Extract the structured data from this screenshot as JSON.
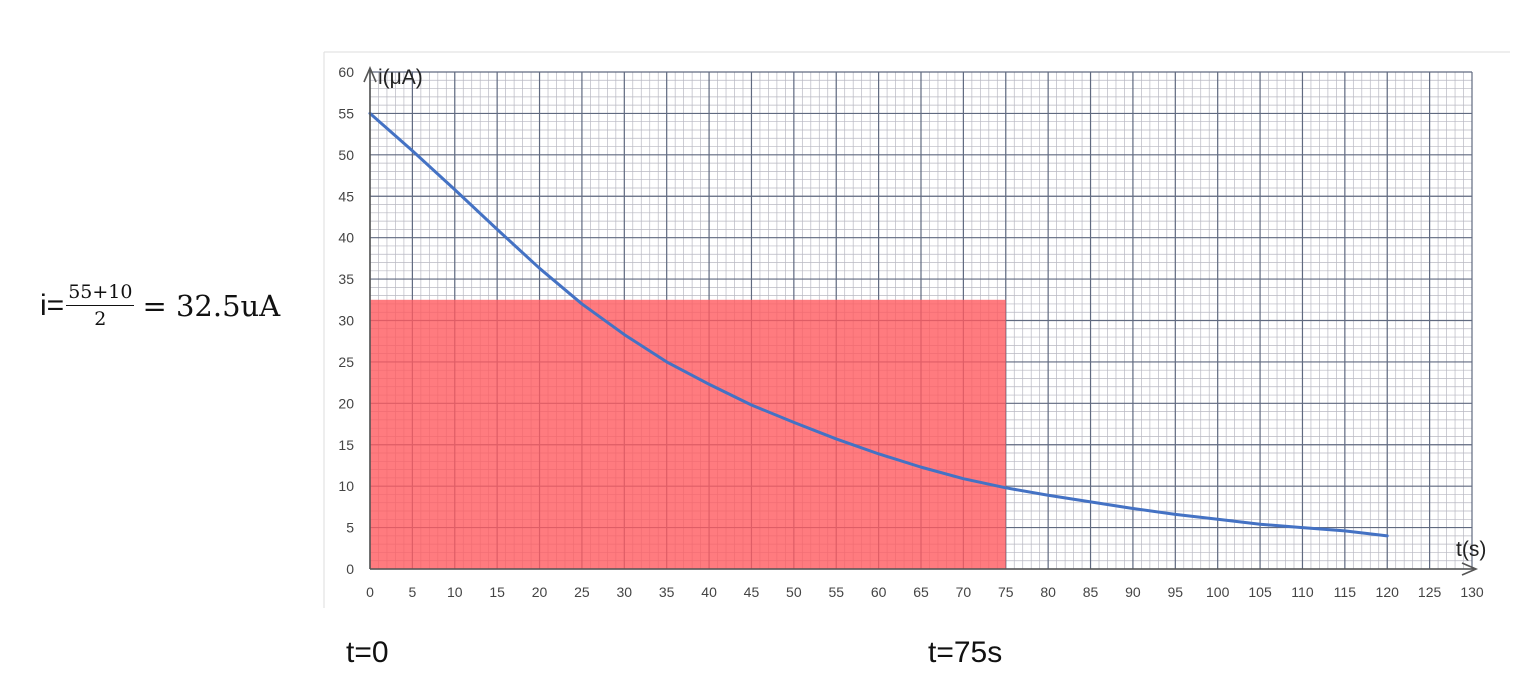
{
  "formula": {
    "lhs": "i=",
    "numerator": "55+10",
    "denominator": "2",
    "rhs": "= 32.5uA"
  },
  "captions": {
    "left": "t=0",
    "right": "t=75s"
  },
  "chart_data": {
    "type": "line",
    "title": "",
    "xlabel": "t(s)",
    "ylabel": "i(μA)",
    "xlim": [
      0,
      130
    ],
    "ylim": [
      0,
      60
    ],
    "x_ticks": [
      0,
      5,
      10,
      15,
      20,
      25,
      30,
      35,
      40,
      45,
      50,
      55,
      60,
      65,
      70,
      75,
      80,
      85,
      90,
      95,
      100,
      105,
      110,
      115,
      120,
      125,
      130
    ],
    "y_ticks": [
      0,
      5,
      10,
      15,
      20,
      25,
      30,
      35,
      40,
      45,
      50,
      55,
      60
    ],
    "grid": true,
    "series": [
      {
        "color": "#4472c4",
        "x": [
          0,
          5,
          10,
          15,
          20,
          25,
          30,
          35,
          40,
          45,
          50,
          55,
          60,
          65,
          70,
          75,
          80,
          85,
          90,
          95,
          100,
          105,
          110,
          115,
          120
        ],
        "y": [
          55,
          50.5,
          45.8,
          41,
          36.3,
          32,
          28.3,
          25,
          22.3,
          19.8,
          17.7,
          15.7,
          13.9,
          12.3,
          10.9,
          9.8,
          8.9,
          8.1,
          7.3,
          6.6,
          6,
          5.4,
          5,
          4.6,
          4
        ]
      }
    ],
    "shaded_region": {
      "x": [
        0,
        75
      ],
      "y": [
        0,
        32.5
      ],
      "color": "#ff5a5f"
    }
  }
}
